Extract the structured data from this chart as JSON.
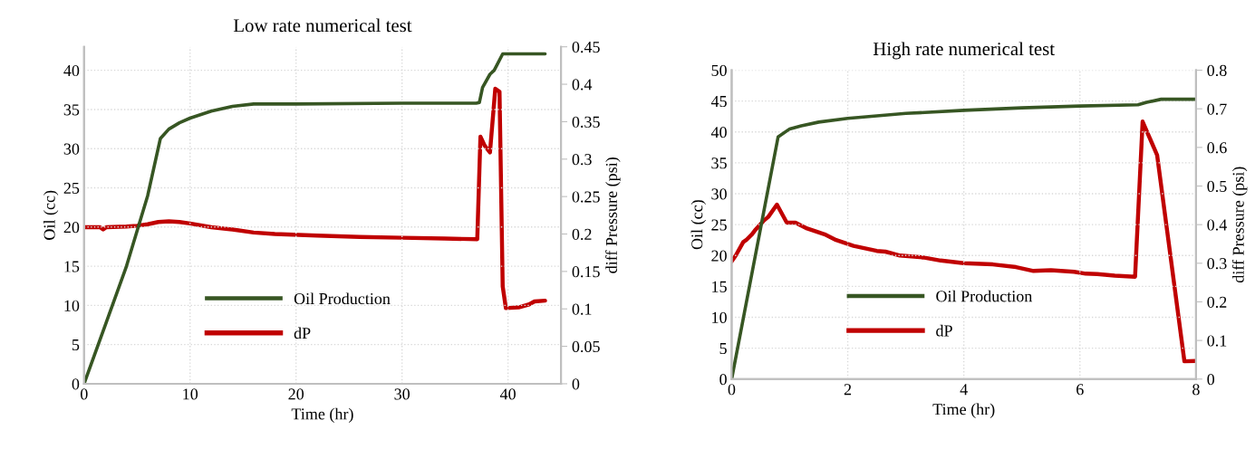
{
  "chart_data": [
    {
      "type": "line",
      "title": "Low rate numerical test",
      "xlabel": "Time (hr)",
      "ylabel": "Oil (cc)",
      "y2label": "diff Pressure (psi)",
      "xlim": [
        0,
        45
      ],
      "xticks": [
        0,
        10,
        20,
        30,
        40
      ],
      "ylim": [
        0,
        43
      ],
      "yticks": [
        0,
        5,
        10,
        15,
        20,
        25,
        30,
        35,
        40
      ],
      "y2lim": [
        0,
        0.45
      ],
      "y2ticks": [
        0,
        0.05,
        0.1,
        0.15,
        0.2,
        0.25,
        0.3,
        0.35,
        0.4,
        0.45
      ],
      "grid": true,
      "legend": "bottom",
      "series": [
        {
          "name": "Oil Production",
          "color": "#375623",
          "x": [
            0,
            2,
            4,
            6,
            7.2,
            8,
            9,
            10,
            12,
            14,
            16,
            20,
            30,
            37,
            37.3,
            37.6,
            38.3,
            38.7,
            39.5,
            43.5
          ],
          "values": [
            0,
            7.5,
            15,
            24,
            31.3,
            32.5,
            33.3,
            33.9,
            34.8,
            35.4,
            35.7,
            35.7,
            35.8,
            35.8,
            35.9,
            37.8,
            39.5,
            40,
            42.1,
            42.1
          ]
        },
        {
          "name": "dP",
          "color": "#c00000",
          "axis": "y2",
          "x": [
            0,
            1.5,
            1.8,
            2.1,
            4,
            5,
            6,
            7,
            8,
            9,
            10,
            12,
            14,
            16,
            18,
            22,
            26,
            30,
            34,
            37.1,
            37.4,
            37.8,
            38.3,
            38.8,
            39.2,
            39.5,
            39.8,
            41,
            42,
            42.5,
            43.5
          ],
          "values": [
            0.209,
            0.209,
            0.206,
            0.209,
            0.21,
            0.211,
            0.213,
            0.216,
            0.217,
            0.216,
            0.214,
            0.209,
            0.206,
            0.202,
            0.2,
            0.198,
            0.196,
            0.195,
            0.194,
            0.193,
            0.33,
            0.318,
            0.309,
            0.394,
            0.39,
            0.13,
            0.101,
            0.102,
            0.106,
            0.11,
            0.111
          ]
        }
      ]
    },
    {
      "type": "line",
      "title": "High rate numerical test",
      "xlabel": "Time (hr)",
      "ylabel": "Oil (cc)",
      "y2label": "diff Pressure (psi)",
      "xlim": [
        0,
        8
      ],
      "xticks": [
        0,
        2,
        4,
        6,
        8
      ],
      "ylim": [
        0,
        50
      ],
      "yticks": [
        0,
        5,
        10,
        15,
        20,
        25,
        30,
        35,
        40,
        45,
        50
      ],
      "y2lim": [
        0,
        0.8
      ],
      "y2ticks": [
        0,
        0.1,
        0.2,
        0.3,
        0.4,
        0.5,
        0.6,
        0.7,
        0.8
      ],
      "grid": true,
      "legend": "bottom",
      "series": [
        {
          "name": "Oil Production",
          "color": "#375623",
          "x": [
            0,
            0.8,
            1,
            1.2,
            1.5,
            2,
            3,
            4,
            5,
            6,
            7,
            7.15,
            7.4,
            8
          ],
          "values": [
            0,
            39.2,
            40.5,
            41,
            41.6,
            42.2,
            43,
            43.5,
            43.9,
            44.2,
            44.4,
            44.8,
            45.3,
            45.3
          ]
        },
        {
          "name": "dP",
          "color": "#c00000",
          "axis": "y2",
          "x": [
            0,
            0.07,
            0.2,
            0.25,
            0.35,
            0.4,
            0.55,
            0.63,
            0.78,
            0.95,
            1.1,
            1.3,
            1.6,
            1.8,
            2.1,
            2.5,
            2.65,
            2.9,
            3.3,
            3.6,
            4,
            4.5,
            4.9,
            5.2,
            5.5,
            5.9,
            6.1,
            6.3,
            6.6,
            6.95,
            7.08,
            7.33,
            7.8,
            8
          ],
          "values": [
            0.305,
            0.32,
            0.355,
            0.36,
            0.375,
            0.385,
            0.41,
            0.42,
            0.452,
            0.405,
            0.405,
            0.39,
            0.375,
            0.36,
            0.345,
            0.332,
            0.33,
            0.32,
            0.315,
            0.307,
            0.3,
            0.297,
            0.29,
            0.28,
            0.282,
            0.278,
            0.273,
            0.272,
            0.268,
            0.265,
            0.667,
            0.58,
            0.046,
            0.047
          ]
        }
      ]
    }
  ]
}
